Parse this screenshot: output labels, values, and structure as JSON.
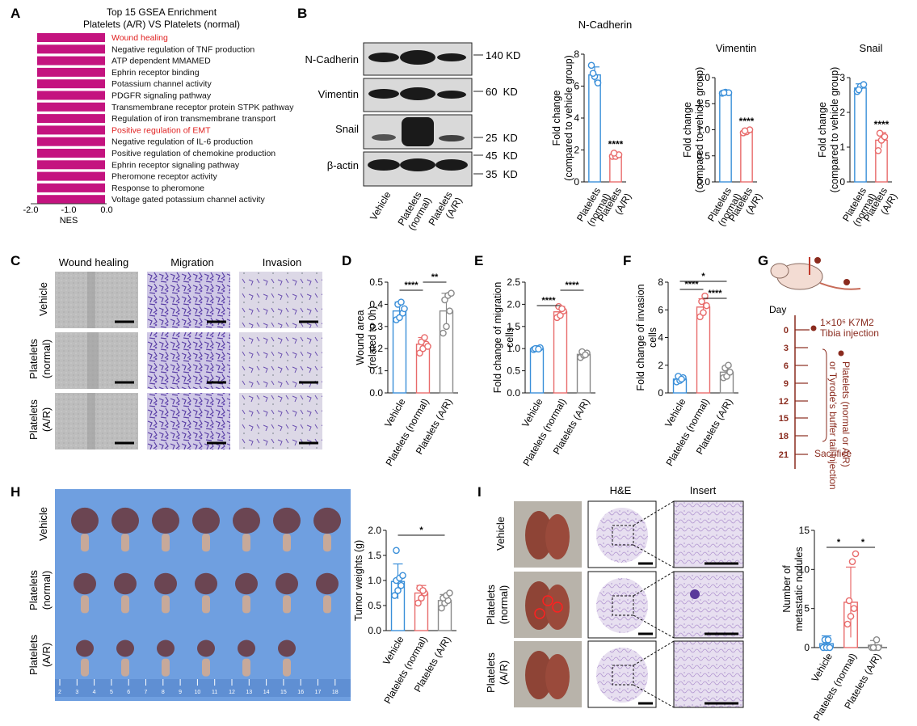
{
  "colors": {
    "magenta": "#c4137f",
    "blue": "#3a8fd9",
    "red": "#e86b6b",
    "gray": "#8a8a8a",
    "dark_red": "#8a2b1e",
    "highlight": "#e01f1f"
  },
  "panel_letters": [
    "A",
    "B",
    "C",
    "D",
    "E",
    "F",
    "G",
    "H",
    "I"
  ],
  "panelA": {
    "title": "Top 15 GSEA Enrichment",
    "subtitle": "Platelets (A/R) VS Platelets (normal)",
    "xlabel": "NES",
    "ticks": [
      "-2.0",
      "-1.0",
      "0.0"
    ]
  },
  "panelB": {
    "bands": [
      "N-Cadherin",
      "Vimentin",
      "Snail",
      "β-actin"
    ],
    "markers": [
      "140 KD",
      "60  KD",
      "25  KD",
      "45  KD",
      "35  KD"
    ],
    "lanes": [
      "Vehicle",
      "Platelets (normal)",
      "Platelets (A/R)"
    ]
  },
  "panelC": {
    "columns": [
      "Wound healing",
      "Migration",
      "Invasion"
    ],
    "rows": [
      "Vehicle",
      "Platelets (normal)",
      "Platelets (A/R)"
    ]
  },
  "panelG": {
    "day_label": "Day",
    "days": [
      "0",
      "3",
      "6",
      "9",
      "12",
      "15",
      "18",
      "21"
    ],
    "event1": "1×10⁶ K7M2",
    "event1b": "Tibia injection",
    "event2": "Platelets (normal or A/R)",
    "event2b": "or Tyrode's buffer tail injection",
    "sacrifice": "Sacrifice"
  },
  "panelH": {
    "rows": [
      "Vehicle",
      "Platelets (normal)",
      "Platelets (A/R)"
    ],
    "ruler": [
      "2",
      "3",
      "4",
      "5",
      "6",
      "7",
      "8",
      "9",
      "10",
      "11",
      "12",
      "13",
      "14",
      "15",
      "16",
      "17",
      "18"
    ]
  },
  "panelI": {
    "columns": [
      "H&E",
      "Insert"
    ],
    "rows": [
      "Vehicle",
      "Platelets (normal)",
      "Platelets (A/R)"
    ]
  },
  "chart_data": [
    {
      "id": "A",
      "type": "bar",
      "orientation": "horizontal",
      "title": "Top 15 GSEA Enrichment",
      "subtitle": "Platelets (A/R) VS Platelets (normal)",
      "xlabel": "NES",
      "xlim": [
        -2.0,
        0.0
      ],
      "categories": [
        "Wound healing",
        "Negative regulation of TNF production",
        "ATP dependent MMAMED",
        "Ephrin receptor binding",
        "Potassium channel activity",
        "PDGFR signaling pathway",
        "Transmembrane receptor protein STPK pathway",
        "Regulation of iron transmembrane transport",
        "Positive regulation of EMT",
        "Negative regulation of IL-6 production",
        "Positive regulation of chemokine production",
        "Ephrin receptor signaling pathway",
        "Pheromone receptor activity",
        "Response to pheromone",
        "Voltage gated potassium channel activity"
      ],
      "highlighted": [
        "Wound healing",
        "Positive regulation of EMT"
      ],
      "values": [
        -1.85,
        -1.84,
        -1.83,
        -1.82,
        -1.82,
        -1.81,
        -1.8,
        -1.8,
        -1.79,
        -1.79,
        -1.78,
        -1.78,
        -1.77,
        -1.77,
        -1.76
      ]
    },
    {
      "id": "B1",
      "type": "bar",
      "title": "N-Cadherin",
      "ylabel": "Fold change (compared to vehicle group)",
      "ylim": [
        0,
        8
      ],
      "yticks": [
        0,
        2,
        4,
        6,
        8
      ],
      "categories": [
        "Platelets (normal)",
        "Platelets (A/R)"
      ],
      "values": [
        6.7,
        1.7
      ],
      "errors": [
        0.5,
        0.15
      ],
      "points": [
        [
          7.3,
          6.6,
          6.2,
          6.8
        ],
        [
          1.6,
          1.6,
          1.7,
          1.8
        ]
      ],
      "annotations": [
        "",
        "****"
      ]
    },
    {
      "id": "B2",
      "type": "bar",
      "title": "Vimentin",
      "ylabel": "Fold change (compared to vehicle group)",
      "ylim": [
        0,
        2.0
      ],
      "yticks": [
        0.0,
        0.5,
        1.0,
        1.5,
        2.0
      ],
      "categories": [
        "Platelets (normal)",
        "Platelets (A/R)"
      ],
      "values": [
        1.71,
        0.97
      ],
      "errors": [
        0.02,
        0.04
      ],
      "points": [
        [
          1.7,
          1.72,
          1.71,
          1.71
        ],
        [
          0.94,
          0.96,
          1.0,
          0.98
        ]
      ],
      "annotations": [
        "",
        "****"
      ]
    },
    {
      "id": "B3",
      "type": "bar",
      "title": "Snail",
      "ylabel": "Fold change (compared to vehicle group)",
      "ylim": [
        0,
        3
      ],
      "yticks": [
        0,
        1,
        2,
        3
      ],
      "categories": [
        "Platelets (normal)",
        "Platelets (A/R)"
      ],
      "values": [
        2.7,
        1.2
      ],
      "errors": [
        0.12,
        0.22
      ],
      "points": [
        [
          2.6,
          2.75,
          2.8,
          2.65
        ],
        [
          0.9,
          1.2,
          1.3,
          1.4
        ]
      ],
      "annotations": [
        "",
        "****"
      ]
    },
    {
      "id": "D",
      "type": "bar",
      "ylabel": "Wound area (related to 0h)",
      "ylim": [
        0,
        0.5
      ],
      "yticks": [
        0.0,
        0.1,
        0.2,
        0.3,
        0.4,
        0.5
      ],
      "categories": [
        "Vehicle",
        "Platelets (normal)",
        "Platelets (A/R)"
      ],
      "values": [
        0.37,
        0.22,
        0.37
      ],
      "errors": [
        0.04,
        0.03,
        0.08
      ],
      "points": [
        [
          0.33,
          0.34,
          0.36,
          0.4,
          0.41,
          0.38
        ],
        [
          0.18,
          0.2,
          0.22,
          0.23,
          0.25,
          0.21
        ],
        [
          0.27,
          0.3,
          0.37,
          0.42,
          0.44,
          0.45
        ]
      ],
      "comparisons": [
        [
          "Vehicle",
          "Platelets (normal)",
          "****"
        ],
        [
          "Platelets (normal)",
          "Platelets (A/R)",
          "**"
        ]
      ]
    },
    {
      "id": "E",
      "type": "bar",
      "ylabel": "Fold change of migration cells",
      "ylim": [
        0,
        2.5
      ],
      "yticks": [
        0.0,
        0.5,
        1.0,
        1.5,
        2.0,
        2.5
      ],
      "categories": [
        "Vehicle",
        "Platelets (normal)",
        "Platelets (A/R)"
      ],
      "values": [
        1.0,
        1.83,
        0.87
      ],
      "errors": [
        0.03,
        0.12,
        0.06
      ],
      "points": [
        [
          0.98,
          1.0,
          1.02,
          1.0,
          0.99
        ],
        [
          1.7,
          1.75,
          1.85,
          1.95,
          1.9
        ],
        [
          0.8,
          0.85,
          0.9,
          0.93,
          0.86
        ]
      ],
      "comparisons": [
        [
          "Vehicle",
          "Platelets (normal)",
          "****"
        ],
        [
          "Platelets (normal)",
          "Platelets (A/R)",
          "****"
        ]
      ]
    },
    {
      "id": "F",
      "type": "bar",
      "ylabel": "Fold change of invasion cells",
      "ylim": [
        0,
        8
      ],
      "yticks": [
        0,
        2,
        4,
        6,
        8
      ],
      "categories": [
        "Vehicle",
        "Platelets (normal)",
        "Platelets (A/R)"
      ],
      "values": [
        1.0,
        6.2,
        1.5
      ],
      "errors": [
        0.2,
        0.6,
        0.4
      ],
      "points": [
        [
          0.8,
          0.9,
          1.1,
          1.2,
          1.0
        ],
        [
          5.5,
          5.8,
          6.3,
          6.6,
          7.0
        ],
        [
          1.1,
          1.2,
          1.5,
          1.8,
          2.0
        ]
      ],
      "comparisons": [
        [
          "Vehicle",
          "Platelets (normal)",
          "****"
        ],
        [
          "Platelets (normal)",
          "Platelets (A/R)",
          "****"
        ],
        [
          "Vehicle",
          "Platelets (A/R)",
          "*"
        ]
      ]
    },
    {
      "id": "H",
      "type": "bar",
      "ylabel": "Tumor weights (g)",
      "ylim": [
        0,
        2.0
      ],
      "yticks": [
        0.0,
        0.5,
        1.0,
        1.5,
        2.0
      ],
      "categories": [
        "Vehicle",
        "Platelets (normal)",
        "Platelets (A/R)"
      ],
      "values": [
        0.98,
        0.75,
        0.6
      ],
      "errors": [
        0.35,
        0.15,
        0.12
      ],
      "points": [
        [
          0.7,
          0.8,
          0.9,
          1.0,
          1.05,
          1.1,
          1.6
        ],
        [
          0.55,
          0.65,
          0.75,
          0.85,
          0.8
        ],
        [
          0.45,
          0.55,
          0.6,
          0.65,
          0.7,
          0.75
        ]
      ],
      "comparisons": [
        [
          "Vehicle",
          "Platelets (A/R)",
          "*"
        ]
      ]
    },
    {
      "id": "I",
      "type": "bar",
      "ylabel": "Number of metastatic nodules",
      "ylim": [
        0,
        15
      ],
      "yticks": [
        0,
        5,
        10,
        15
      ],
      "categories": [
        "Vehicle",
        "Platelets (normal)",
        "Platelets (A/R)"
      ],
      "values": [
        0.5,
        5.8,
        0.3
      ],
      "errors": [
        1.0,
        4.5,
        0.6
      ],
      "points": [
        [
          0,
          0,
          0,
          1,
          1
        ],
        [
          3,
          4,
          5,
          6,
          11,
          12
        ],
        [
          0,
          0,
          0,
          0,
          1
        ]
      ],
      "comparisons": [
        [
          "Vehicle",
          "Platelets (normal)",
          "*"
        ],
        [
          "Platelets (normal)",
          "Platelets (A/R)",
          "*"
        ]
      ]
    }
  ]
}
